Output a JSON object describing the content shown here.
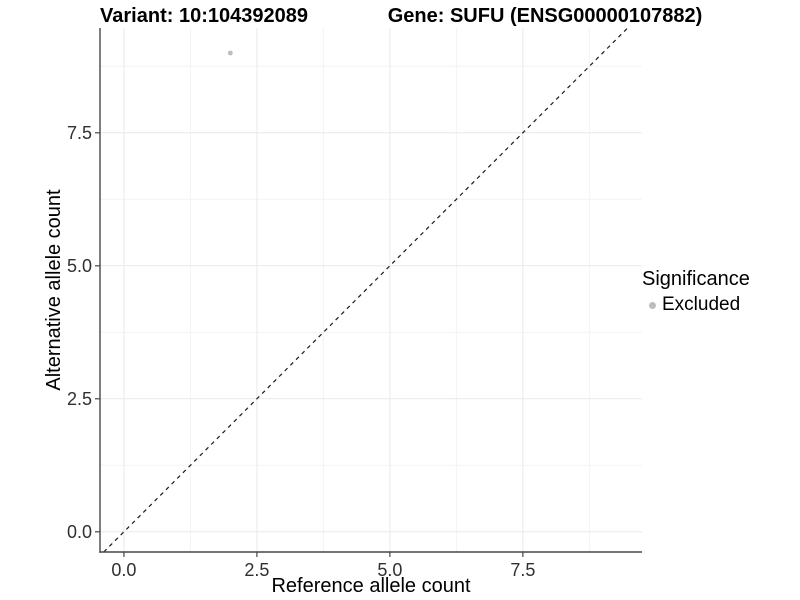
{
  "chart_data": {
    "type": "scatter",
    "title_left": "Variant: 10:104392089",
    "title_right": "Gene: SUFU (ENSG00000107882)",
    "xlabel": "Reference allele count",
    "ylabel": "Alternative allele count",
    "xlim": [
      -0.45,
      9.74
    ],
    "ylim": [
      -0.38,
      9.47
    ],
    "x_major_ticks": [
      0.0,
      2.5,
      5.0,
      7.5
    ],
    "x_tick_labels": [
      "0.0",
      "2.5",
      "5.0",
      "7.5"
    ],
    "y_major_ticks": [
      0.0,
      2.5,
      5.0,
      7.5
    ],
    "y_tick_labels": [
      "0.0",
      "2.5",
      "5.0",
      "7.5"
    ],
    "x_minor_ticks": [
      1.25,
      3.75,
      6.25,
      8.75
    ],
    "y_minor_ticks": [
      1.25,
      3.75,
      6.25,
      8.75
    ],
    "grid": "major and minor, light grey on white",
    "points": [
      {
        "x": 2,
        "y": 9,
        "significance": "Excluded"
      }
    ],
    "identity_line": {
      "slope": 1,
      "intercept": 0,
      "style": "dashed"
    },
    "legend": {
      "title": "Significance",
      "position": "right",
      "items": [
        {
          "label": "Excluded",
          "color": "#bdbdbd"
        }
      ]
    },
    "colors": {
      "point": "#bdbdbd",
      "grid_major": "#e9e9e9",
      "grid_minor": "#f3f3f3",
      "axis_line": "#474747",
      "identity_line": "#1a1a1a",
      "tick_text": "#303030",
      "title_text": "#000000"
    }
  }
}
